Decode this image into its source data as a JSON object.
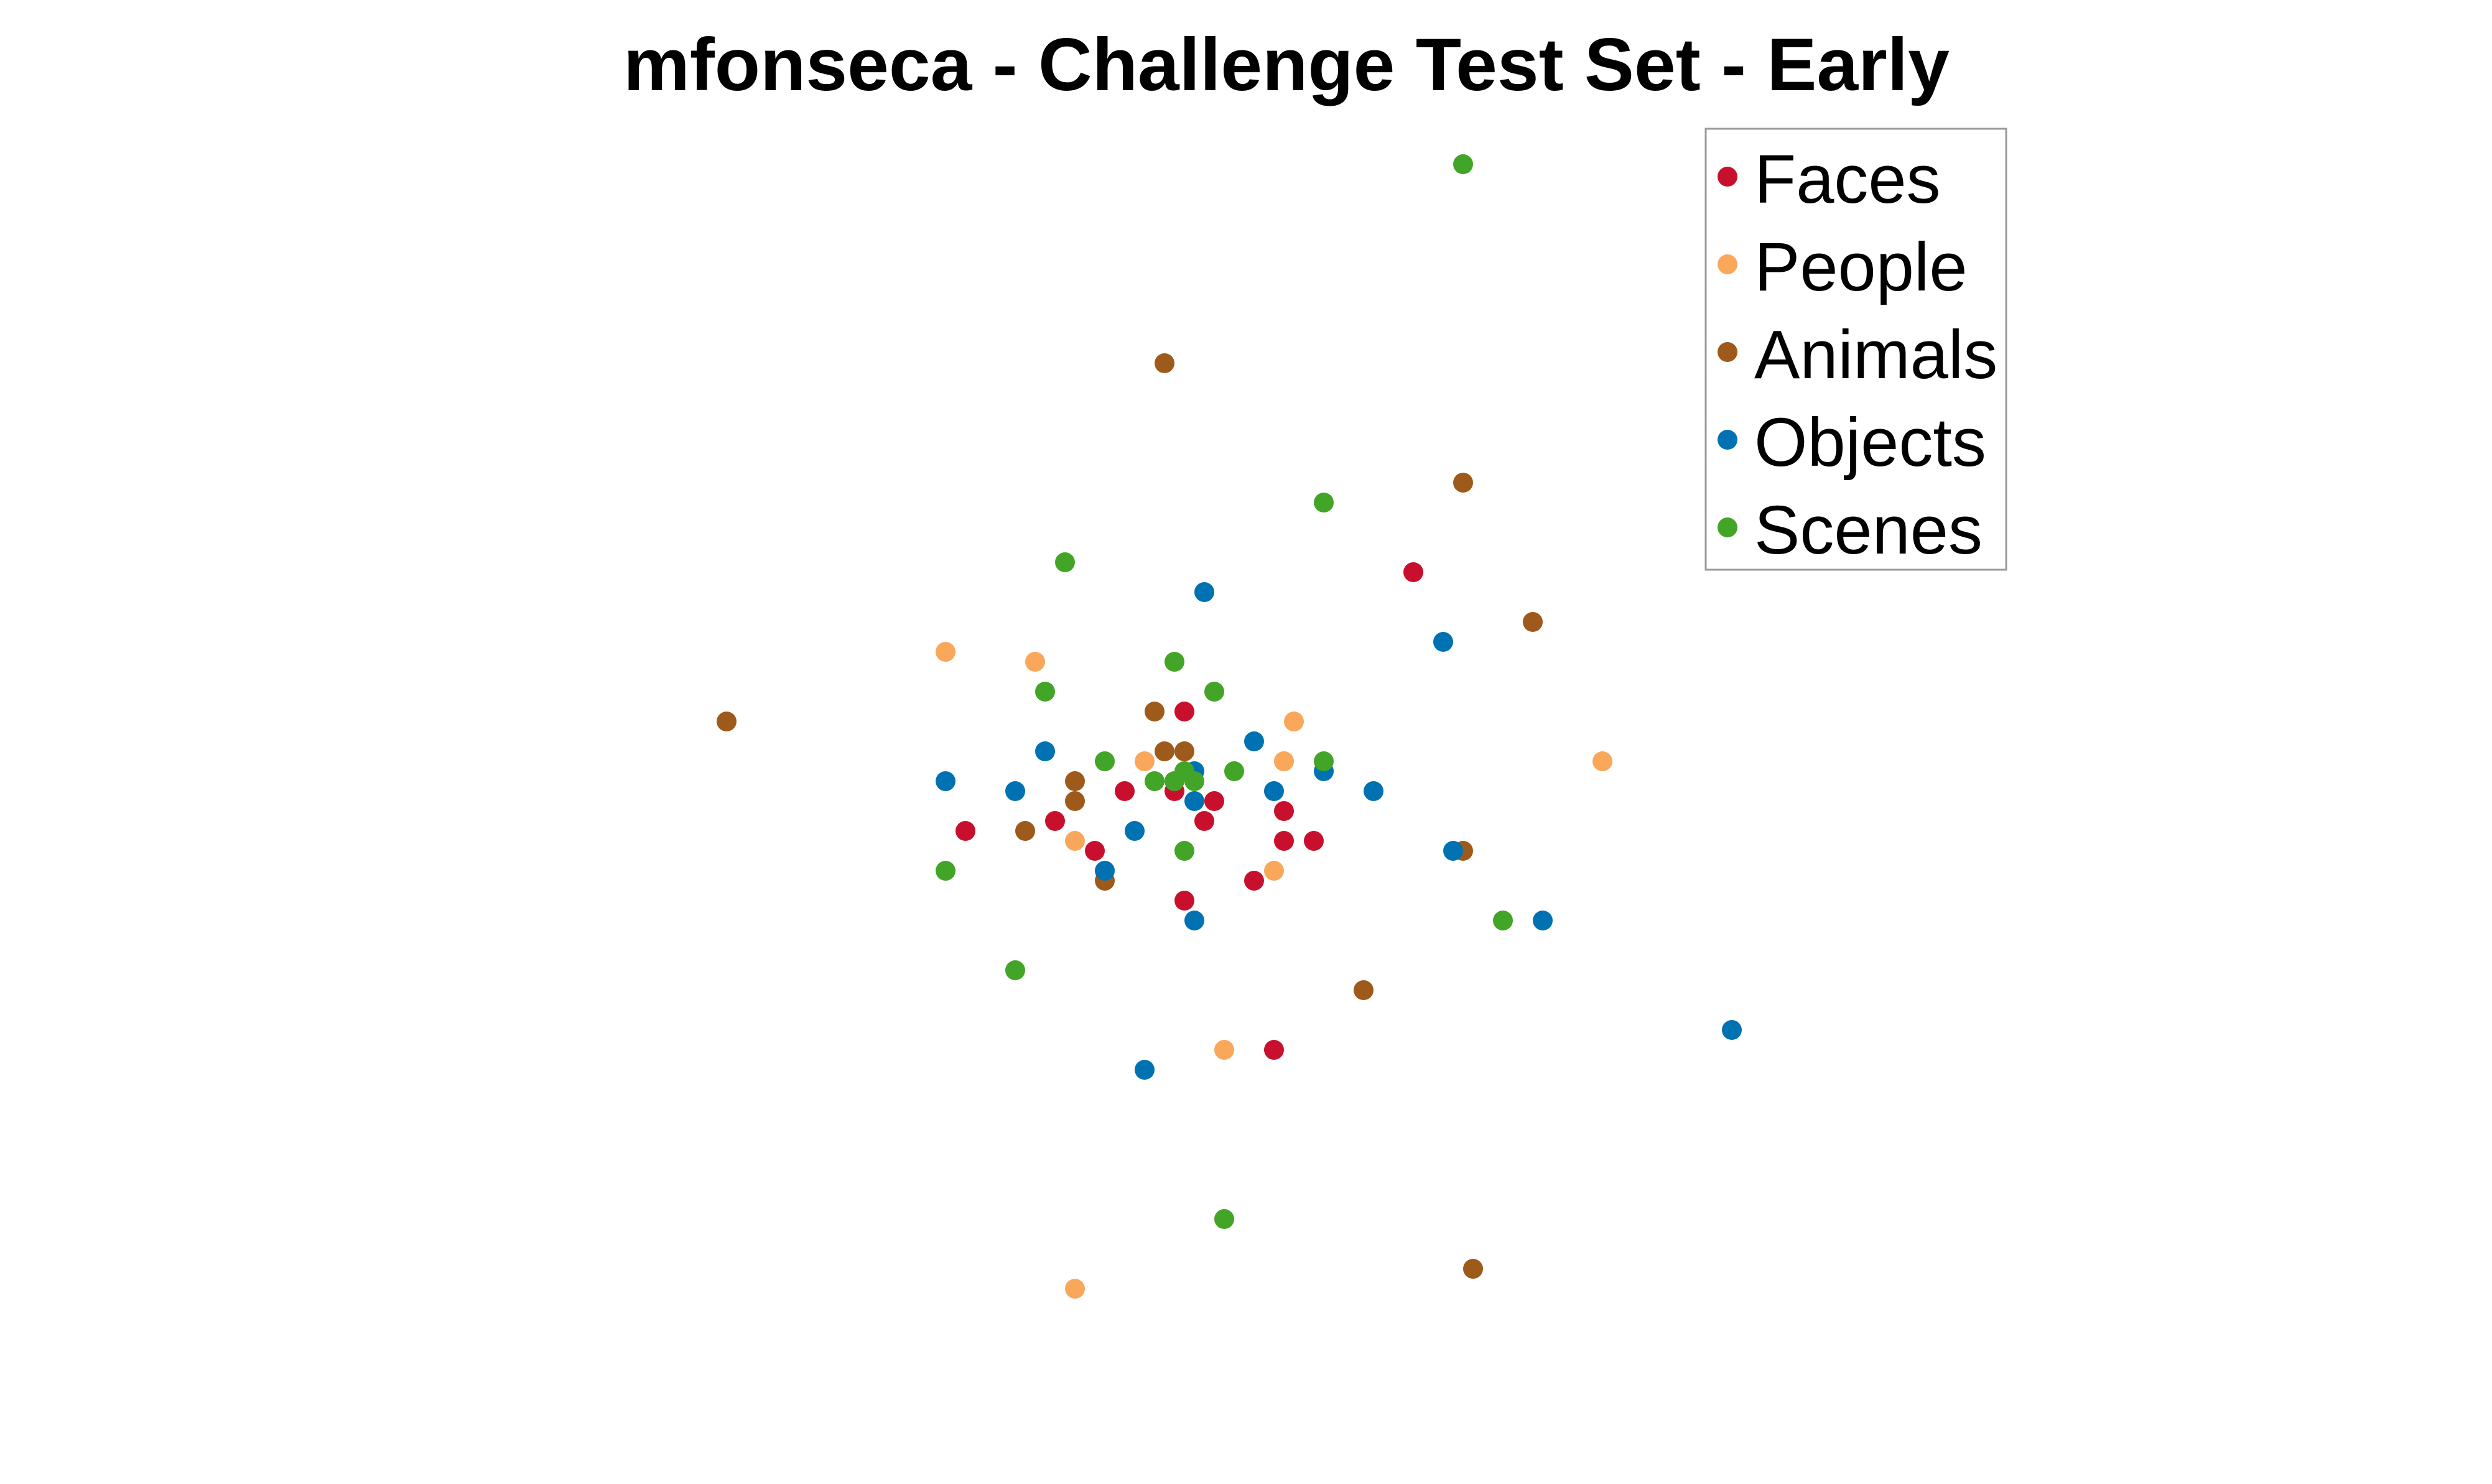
{
  "chart_data": {
    "type": "scatter",
    "title": "mfonseca - Challenge Test Set - Early",
    "xlabel": "",
    "ylabel": "",
    "axes_visible": false,
    "grid": false,
    "xlim": [
      -1.0,
      1.0
    ],
    "ylim": [
      -1.0,
      1.0
    ],
    "legend": {
      "placement": "top-right",
      "boxed": true
    },
    "series": [
      {
        "name": "Faces",
        "color": "#C8102E",
        "points": [
          [
            -0.06,
            0.06
          ],
          [
            0.17,
            0.2
          ],
          [
            -0.19,
            -0.05
          ],
          [
            -0.28,
            -0.06
          ],
          [
            -0.15,
            -0.08
          ],
          [
            -0.04,
            -0.05
          ],
          [
            -0.06,
            -0.13
          ],
          [
            -0.12,
            -0.02
          ],
          [
            -0.07,
            -0.02
          ],
          [
            -0.03,
            -0.03
          ],
          [
            0.01,
            -0.11
          ],
          [
            0.04,
            -0.04
          ],
          [
            0.04,
            -0.07
          ],
          [
            0.07,
            -0.07
          ],
          [
            0.03,
            -0.28
          ]
        ]
      },
      {
        "name": "People",
        "color": "#F9A85B",
        "points": [
          [
            -0.3,
            0.12
          ],
          [
            -0.21,
            0.11
          ],
          [
            -0.1,
            0.01
          ],
          [
            0.04,
            0.01
          ],
          [
            0.05,
            0.05
          ],
          [
            0.04,
            0.01
          ],
          [
            0.36,
            0.01
          ],
          [
            -0.17,
            -0.07
          ],
          [
            0.03,
            -0.1
          ],
          [
            -0.02,
            -0.28
          ],
          [
            -0.17,
            -0.52
          ]
        ]
      },
      {
        "name": "Animals",
        "color": "#9E5A1A",
        "points": [
          [
            -0.08,
            0.41
          ],
          [
            0.22,
            0.29
          ],
          [
            0.29,
            0.15
          ],
          [
            -0.52,
            0.05
          ],
          [
            -0.09,
            0.06
          ],
          [
            -0.08,
            0.02
          ],
          [
            -0.06,
            0.02
          ],
          [
            -0.17,
            -0.01
          ],
          [
            -0.17,
            -0.03
          ],
          [
            -0.22,
            -0.06
          ],
          [
            -0.14,
            -0.11
          ],
          [
            0.12,
            -0.22
          ],
          [
            0.22,
            -0.08
          ],
          [
            0.23,
            -0.5
          ]
        ]
      },
      {
        "name": "Objects",
        "color": "#0072B2",
        "points": [
          [
            -0.04,
            0.18
          ],
          [
            0.2,
            0.13
          ],
          [
            -0.2,
            0.02
          ],
          [
            -0.3,
            -0.01
          ],
          [
            -0.23,
            -0.02
          ],
          [
            -0.11,
            -0.06
          ],
          [
            -0.05,
            0.0
          ],
          [
            -0.05,
            -0.03
          ],
          [
            0.01,
            0.03
          ],
          [
            0.03,
            -0.02
          ],
          [
            0.08,
            0.0
          ],
          [
            0.13,
            -0.02
          ],
          [
            0.21,
            -0.08
          ],
          [
            0.3,
            -0.15
          ],
          [
            0.49,
            -0.26
          ],
          [
            -0.14,
            -0.1
          ],
          [
            -0.05,
            -0.15
          ],
          [
            -0.1,
            -0.3
          ]
        ]
      },
      {
        "name": "Scenes",
        "color": "#43A527",
        "points": [
          [
            0.22,
            0.61
          ],
          [
            0.08,
            0.27
          ],
          [
            -0.18,
            0.21
          ],
          [
            -0.2,
            0.08
          ],
          [
            -0.07,
            0.11
          ],
          [
            -0.03,
            0.08
          ],
          [
            -0.14,
            0.01
          ],
          [
            -0.09,
            -0.01
          ],
          [
            -0.07,
            -0.01
          ],
          [
            -0.05,
            -0.01
          ],
          [
            -0.06,
            0.0
          ],
          [
            -0.01,
            0.0
          ],
          [
            0.08,
            0.01
          ],
          [
            -0.06,
            -0.08
          ],
          [
            -0.3,
            -0.1
          ],
          [
            0.26,
            -0.15
          ],
          [
            -0.23,
            -0.2
          ],
          [
            -0.02,
            -0.45
          ]
        ]
      }
    ]
  }
}
